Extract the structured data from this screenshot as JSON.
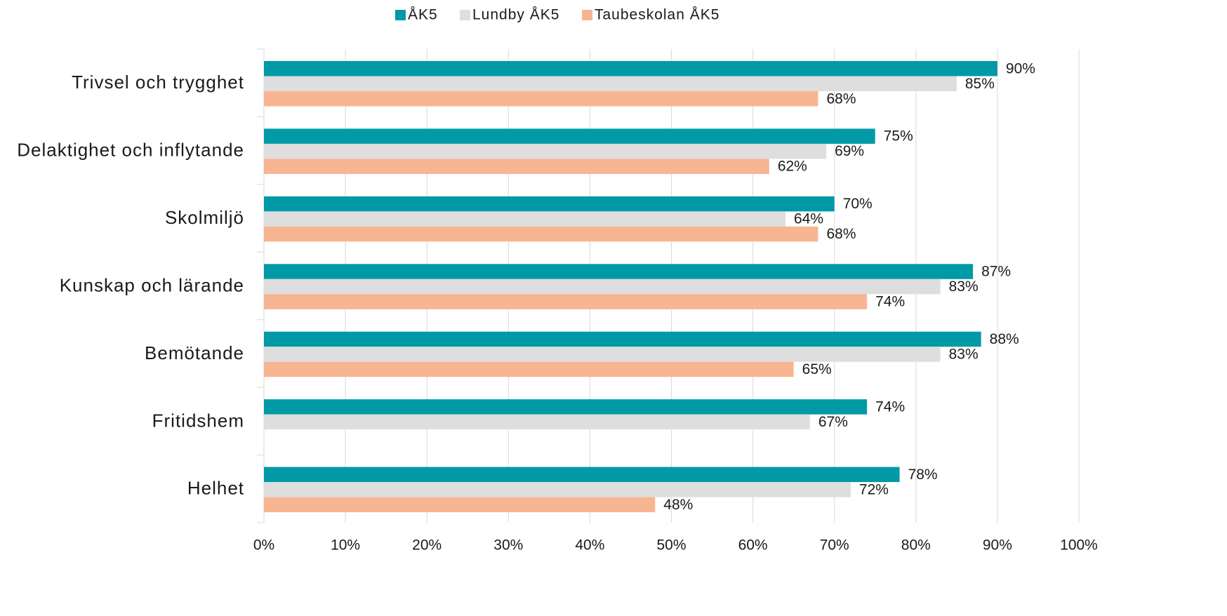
{
  "chart_data": {
    "type": "barh",
    "categories": [
      "Trivsel och trygghet",
      "Delaktighet och inflytande",
      "Skolmiljö",
      "Kunskap och lärande",
      "Bemötande",
      "Fritidshem",
      "Helhet"
    ],
    "series": [
      {
        "name": "ÅK5",
        "color": "#009aa6",
        "values": [
          90,
          75,
          70,
          87,
          88,
          74,
          78
        ],
        "value_labels": [
          "90%",
          "75%",
          "70%",
          "87%",
          "88%",
          "74%",
          "78%"
        ]
      },
      {
        "name": "Lundby ÅK5",
        "color": "#dedede",
        "values": [
          85,
          69,
          64,
          83,
          83,
          67,
          72
        ],
        "value_labels": [
          "85%",
          "69%",
          "64%",
          "83%",
          "83%",
          "67%",
          "72%"
        ]
      },
      {
        "name": "Taubeskolan ÅK5",
        "color": "#f8b592",
        "values": [
          68,
          62,
          68,
          74,
          65,
          null,
          48
        ],
        "value_labels": [
          "68%",
          "62%",
          "68%",
          "74%",
          "65%",
          null,
          "48%"
        ]
      }
    ],
    "xlim": [
      0,
      100
    ],
    "xticks": [
      {
        "value": 0,
        "label": "0%"
      },
      {
        "value": 10,
        "label": "10%"
      },
      {
        "value": 20,
        "label": "20%"
      },
      {
        "value": 30,
        "label": "30%"
      },
      {
        "value": 40,
        "label": "40%"
      },
      {
        "value": 50,
        "label": "50%"
      },
      {
        "value": 60,
        "label": "60%"
      },
      {
        "value": 70,
        "label": "70%"
      },
      {
        "value": 80,
        "label": "80%"
      },
      {
        "value": 90,
        "label": "90%"
      },
      {
        "value": 100,
        "label": "100%"
      }
    ],
    "grid": true,
    "legend": "top"
  }
}
